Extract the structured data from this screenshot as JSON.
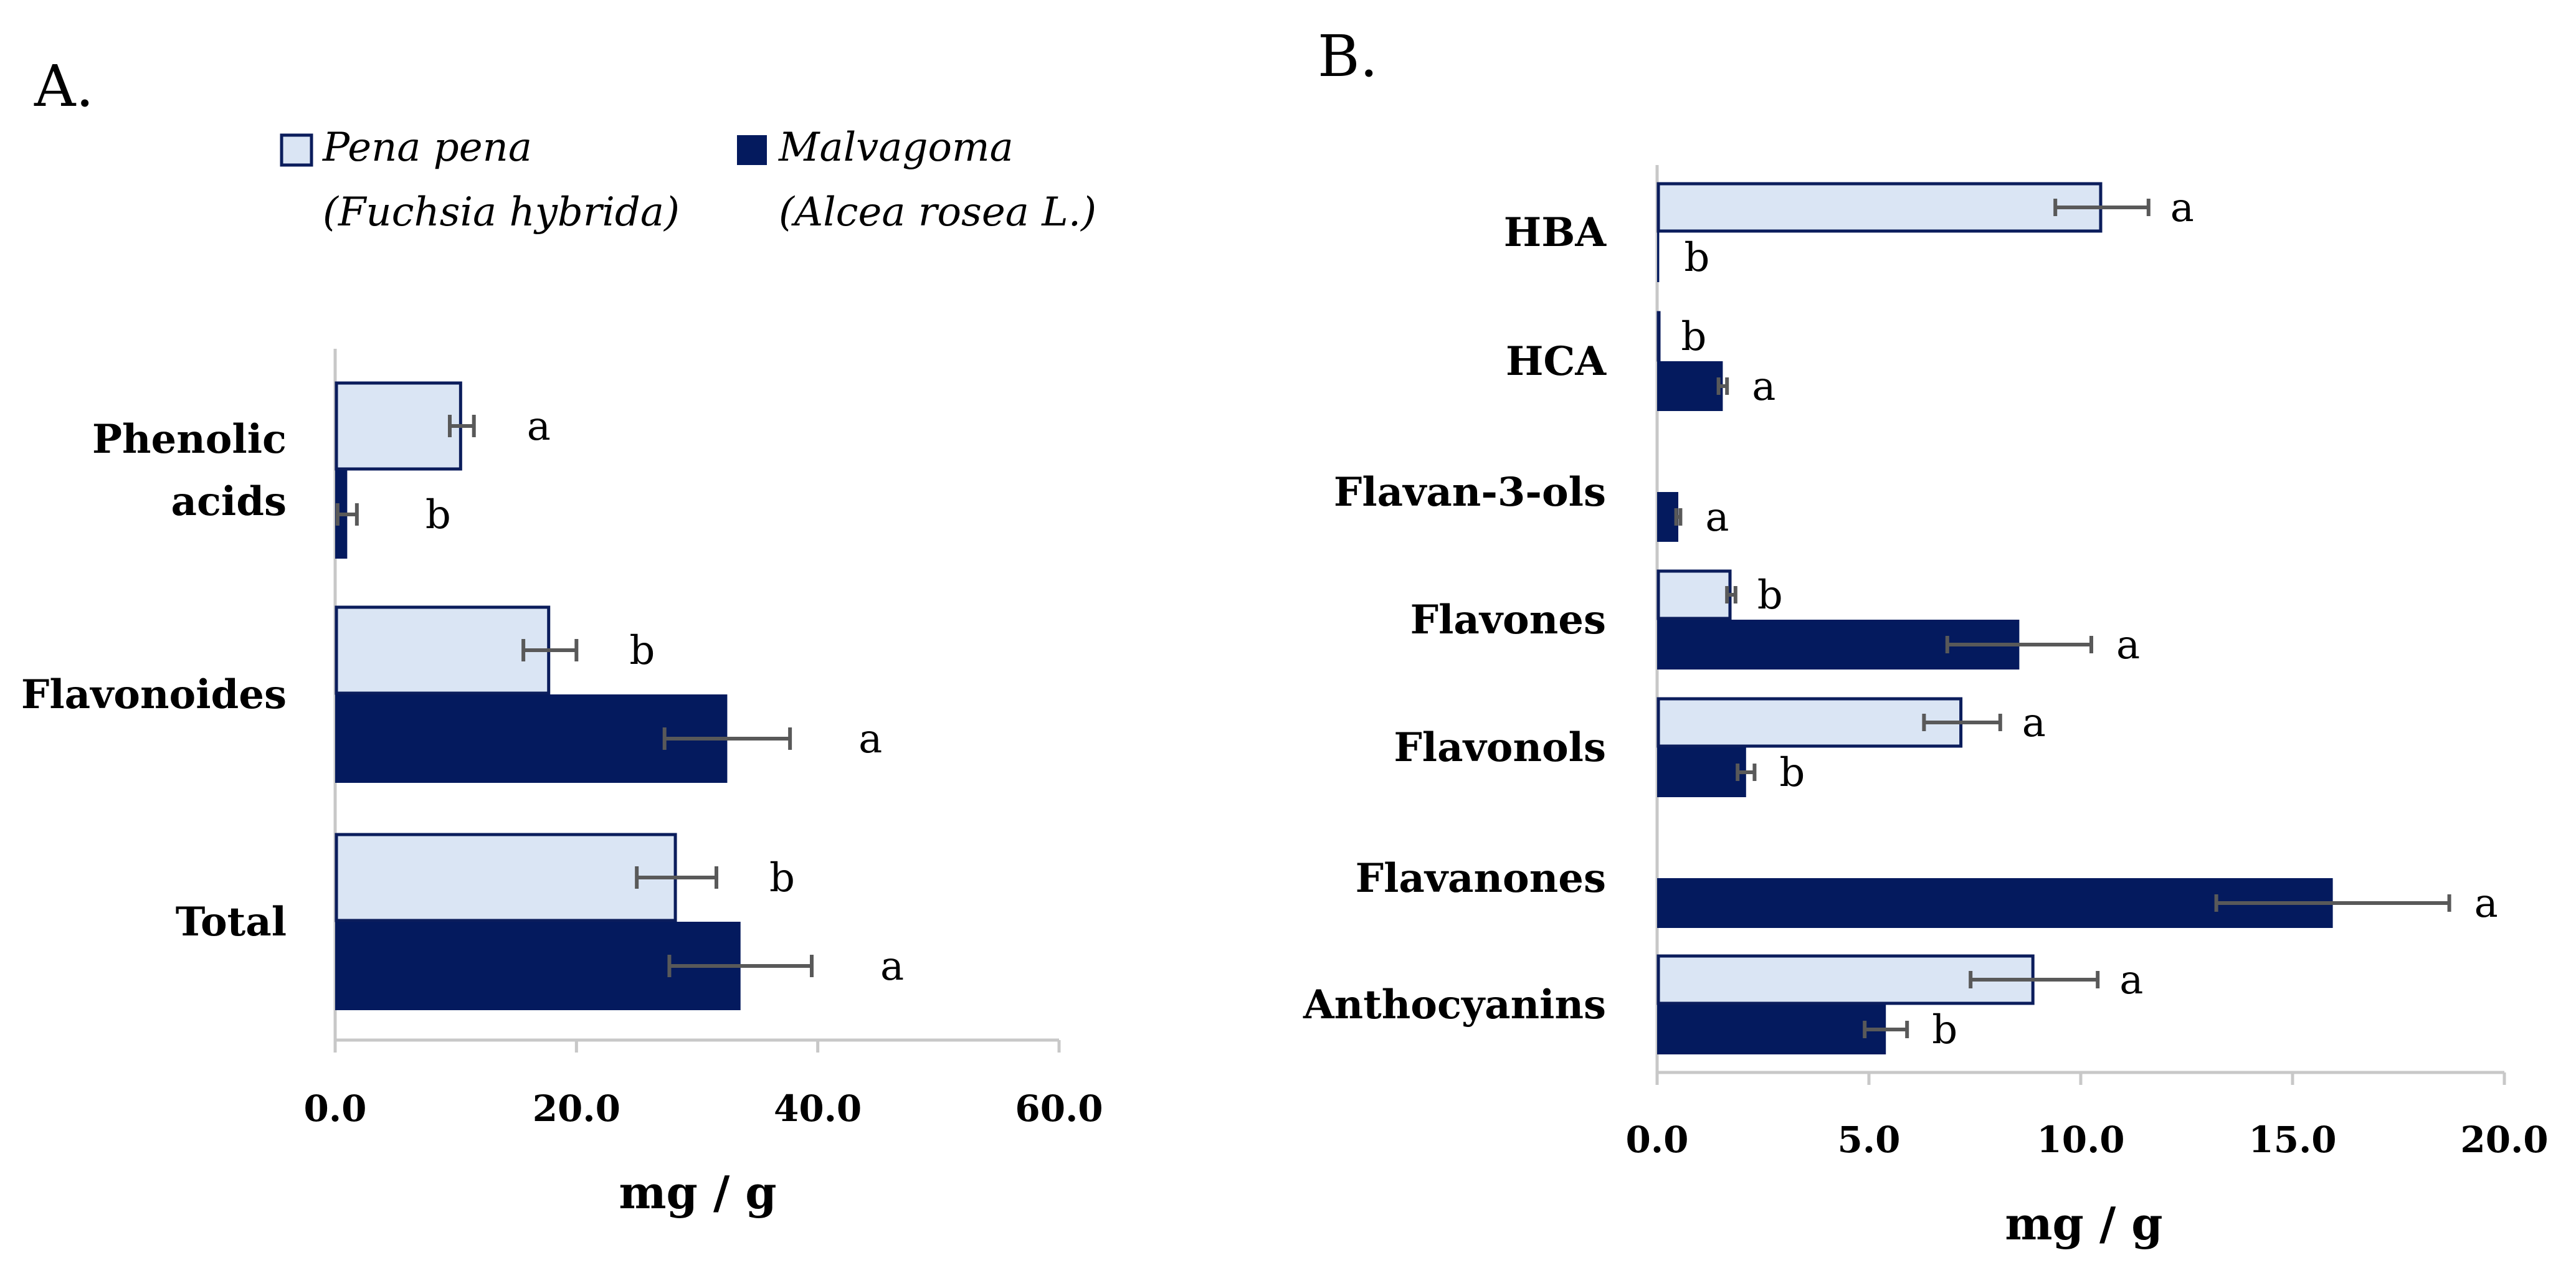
{
  "colors": {
    "pena": "#dae5f4",
    "pena_edge": "#0b1d5c",
    "malva": "#041a5e",
    "axis": "#c8c8c8",
    "errbar": "#595959"
  },
  "legend": {
    "pena": {
      "name": "Pena pena",
      "latin": "(Fuchsia hybrida)"
    },
    "malva": {
      "name": "Malvagoma",
      "latin": "(Alcea rosea L.)"
    }
  },
  "chart_data": [
    {
      "panel": "A.",
      "type": "bar",
      "orientation": "horizontal",
      "xlabel": "mg / g",
      "xlim": [
        0,
        60
      ],
      "ticks": [
        "0.0",
        "20.0",
        "40.0",
        "60.0"
      ],
      "categories": [
        {
          "lines": [
            "Phenolic",
            "acids"
          ]
        },
        {
          "lines": [
            "Flavonoides"
          ]
        },
        {
          "lines": [
            "Total"
          ]
        }
      ],
      "series": [
        {
          "name": "Pena pena (Fuchsia hybrida)",
          "values": [
            10.5,
            17.8,
            28.3
          ],
          "errors": [
            1.0,
            2.2,
            3.3
          ],
          "letters": [
            "a",
            "b",
            "b"
          ]
        },
        {
          "name": "Malvagoma (Alcea rosea L.)",
          "values": [
            1.0,
            32.5,
            33.6
          ],
          "errors": [
            0.8,
            5.2,
            5.9
          ],
          "letters": [
            "b",
            "a",
            "a"
          ]
        }
      ]
    },
    {
      "panel": "B.",
      "type": "bar",
      "orientation": "horizontal",
      "xlabel": "mg / g",
      "xlim": [
        0,
        20
      ],
      "ticks": [
        "0.0",
        "5.0",
        "10.0",
        "15.0",
        "20.0"
      ],
      "categories": [
        {
          "lines": [
            "HBA"
          ]
        },
        {
          "lines": [
            "HCA"
          ]
        },
        {
          "lines": [
            "Flavan-3-ols"
          ]
        },
        {
          "lines": [
            "Flavones"
          ]
        },
        {
          "lines": [
            "Flavonols"
          ]
        },
        {
          "lines": [
            "Flavanones"
          ]
        },
        {
          "lines": [
            "Anthocyanins"
          ]
        }
      ],
      "series": [
        {
          "name": "Pena pena (Fuchsia hybrida)",
          "values": [
            10.5,
            0.05,
            0,
            1.75,
            7.2,
            0,
            8.9
          ],
          "errors": [
            1.1,
            0,
            0,
            0.1,
            0.9,
            0,
            1.5
          ],
          "letters": [
            "a",
            "b",
            "",
            "b",
            "a",
            "",
            "a"
          ]
        },
        {
          "name": "Malvagoma (Alcea rosea L.)",
          "values": [
            0.05,
            1.55,
            0.5,
            8.55,
            2.1,
            15.95,
            5.4
          ],
          "errors": [
            0,
            0.1,
            0.05,
            1.7,
            0.2,
            2.75,
            0.5
          ],
          "letters": [
            "b",
            "a",
            "a",
            "a",
            "b",
            "a",
            "b"
          ]
        }
      ]
    }
  ]
}
